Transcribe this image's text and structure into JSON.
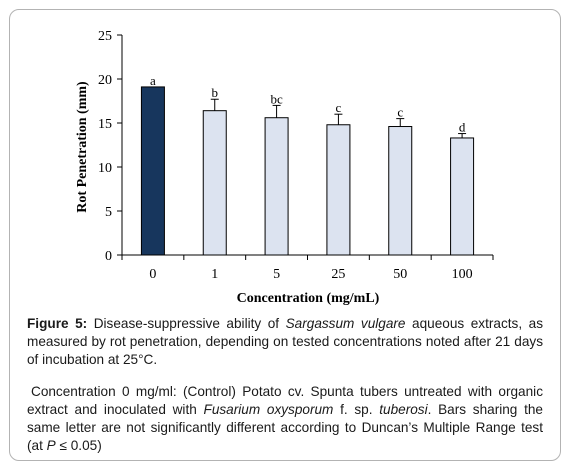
{
  "chart_data": {
    "type": "bar",
    "categories": [
      "0",
      "1",
      "5",
      "25",
      "50",
      "100"
    ],
    "values": [
      19.1,
      16.4,
      15.6,
      14.8,
      14.6,
      13.3
    ],
    "errors": [
      0,
      1.3,
      1.4,
      1.2,
      0.9,
      0.5
    ],
    "significance_letters": [
      "a",
      "b",
      "bc",
      "c",
      "c",
      "d"
    ],
    "xlabel": "Concentration (mg/mL)",
    "ylabel": "Rot Penetration (mm)",
    "ylim": [
      0,
      25
    ],
    "yticks": [
      "0",
      "5",
      "10",
      "15",
      "20",
      "25"
    ],
    "colors": {
      "control_bar": "#17365d",
      "treatment_bar": "#dce3f0",
      "bar_outline": "#000000"
    },
    "grid": false
  },
  "caption": {
    "label": "Figure 5:",
    "p1_a": " Disease-suppressive ability of ",
    "p1_species": "Sargassum vulgare",
    "p1_b": " aqueous extracts, as measured by rot penetration, depending on tested concentrations noted after 21 days of incubation at 25°C.",
    "p2_a": "Concentration 0 mg/ml: (Control) Potato cv. Spunta tubers untreated with organic extract and inoculated with ",
    "p2_pathogen": "Fusarium oxysporum",
    "p2_b": " f. sp. ",
    "p2_forma": "tuberosi",
    "p2_c": ". Bars sharing the same letter are not significantly different according to Duncan’s Multiple Range test (at ",
    "p2_p": "P",
    "p2_d": " ≤ 0.05)"
  }
}
